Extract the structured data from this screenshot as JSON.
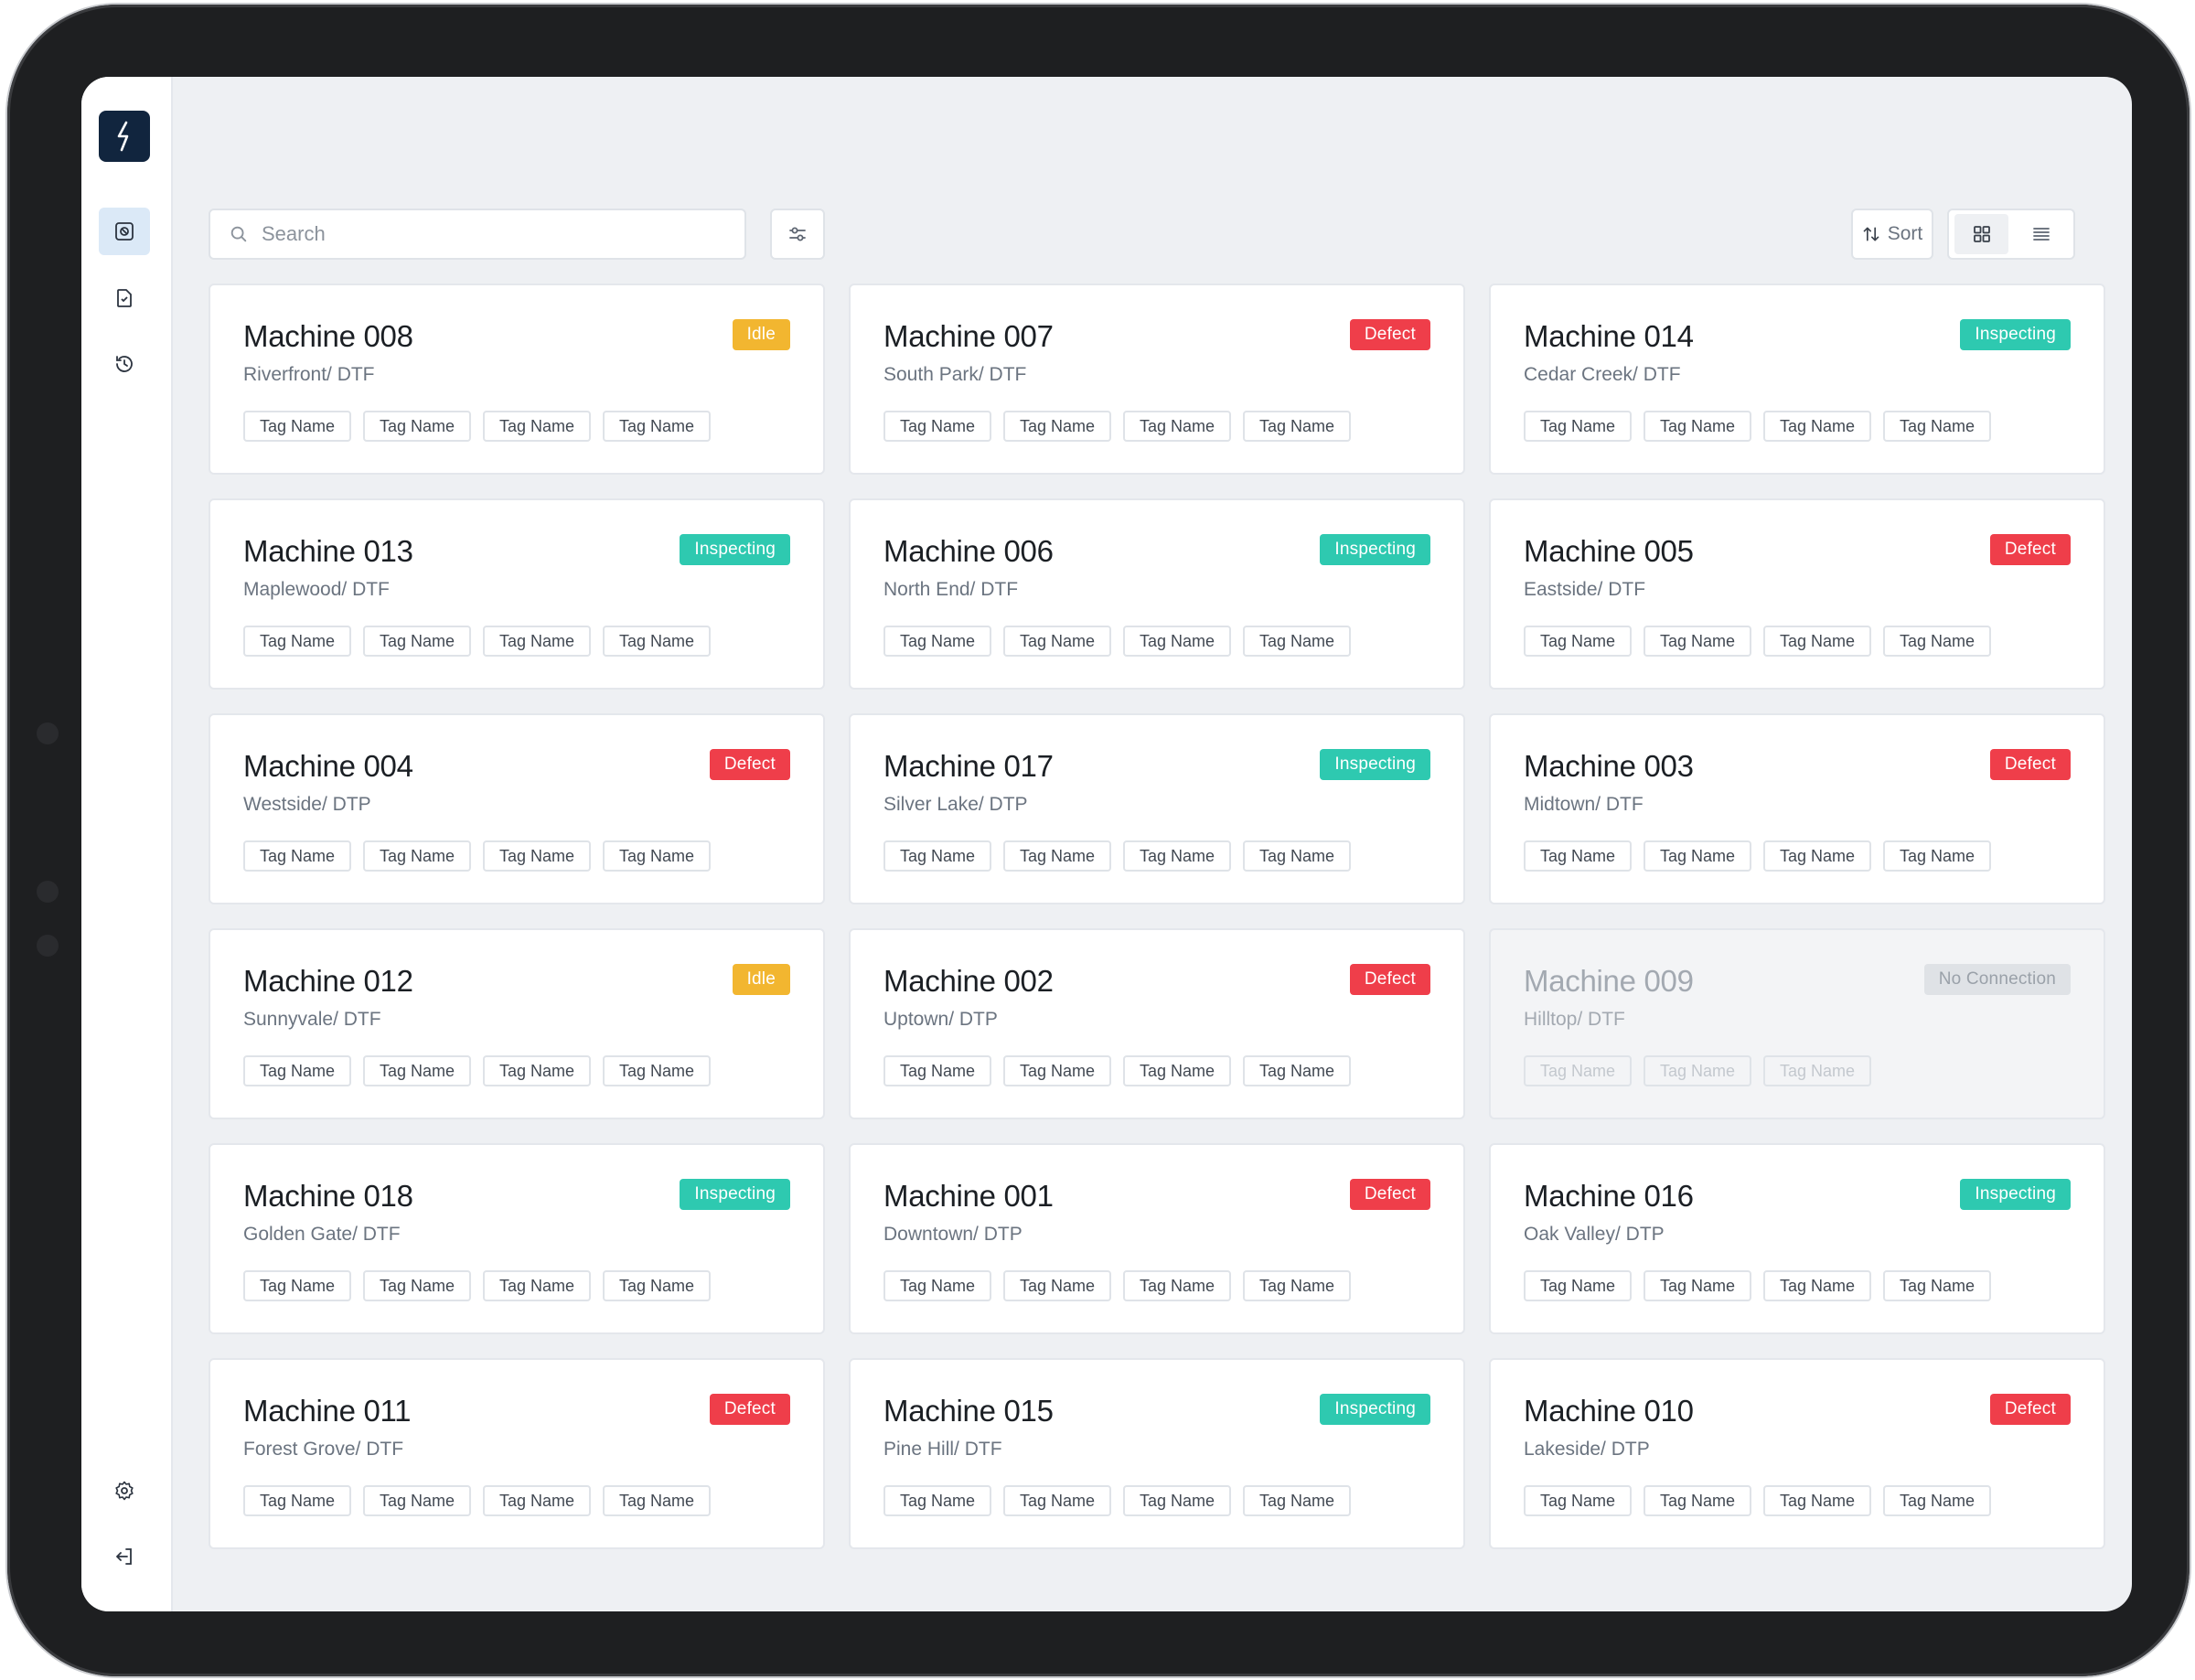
{
  "search": {
    "placeholder": "Search"
  },
  "toolbar": {
    "sort_label": "Sort"
  },
  "colors": {
    "Idle": "#f2b630",
    "Defect": "#ef3e4a",
    "Inspecting": "#2ec9b0",
    "No Connection": "#dfe2e6"
  },
  "icons": {
    "logo": "lightning-icon",
    "nav": [
      "scan-icon",
      "document-icon",
      "history-icon"
    ],
    "footer": [
      "settings-icon",
      "logout-icon"
    ]
  },
  "machines": [
    {
      "name": "Machine 008",
      "location": "Riverfront/ DTF",
      "status": "Idle",
      "tags": [
        "Tag Name",
        "Tag Name",
        "Tag Name",
        "Tag Name"
      ]
    },
    {
      "name": "Machine 007",
      "location": "South Park/ DTF",
      "status": "Defect",
      "tags": [
        "Tag Name",
        "Tag Name",
        "Tag Name",
        "Tag Name"
      ]
    },
    {
      "name": "Machine 014",
      "location": "Cedar Creek/ DTF",
      "status": "Inspecting",
      "tags": [
        "Tag Name",
        "Tag Name",
        "Tag Name",
        "Tag Name"
      ]
    },
    {
      "name": "Machine 013",
      "location": "Maplewood/ DTF",
      "status": "Inspecting",
      "tags": [
        "Tag Name",
        "Tag Name",
        "Tag Name",
        "Tag Name"
      ]
    },
    {
      "name": "Machine 006",
      "location": "North End/ DTF",
      "status": "Inspecting",
      "tags": [
        "Tag Name",
        "Tag Name",
        "Tag Name",
        "Tag Name"
      ]
    },
    {
      "name": "Machine 005",
      "location": "Eastside/ DTF",
      "status": "Defect",
      "tags": [
        "Tag Name",
        "Tag Name",
        "Tag Name",
        "Tag Name"
      ]
    },
    {
      "name": "Machine 004",
      "location": "Westside/ DTP",
      "status": "Defect",
      "tags": [
        "Tag Name",
        "Tag Name",
        "Tag Name",
        "Tag Name"
      ]
    },
    {
      "name": "Machine 017",
      "location": "Silver Lake/ DTP",
      "status": "Inspecting",
      "tags": [
        "Tag Name",
        "Tag Name",
        "Tag Name",
        "Tag Name"
      ]
    },
    {
      "name": "Machine 003",
      "location": "Midtown/ DTF",
      "status": "Defect",
      "tags": [
        "Tag Name",
        "Tag Name",
        "Tag Name",
        "Tag Name"
      ]
    },
    {
      "name": "Machine 012",
      "location": "Sunnyvale/ DTF",
      "status": "Idle",
      "tags": [
        "Tag Name",
        "Tag Name",
        "Tag Name",
        "Tag Name"
      ]
    },
    {
      "name": "Machine 002",
      "location": "Uptown/ DTP",
      "status": "Defect",
      "tags": [
        "Tag Name",
        "Tag Name",
        "Tag Name",
        "Tag Name"
      ]
    },
    {
      "name": "Machine 009",
      "location": "Hilltop/ DTF",
      "status": "No Connection",
      "tags": [
        "Tag Name",
        "Tag Name",
        "Tag Name"
      ]
    },
    {
      "name": "Machine 018",
      "location": "Golden Gate/ DTF",
      "status": "Inspecting",
      "tags": [
        "Tag Name",
        "Tag Name",
        "Tag Name",
        "Tag Name"
      ]
    },
    {
      "name": "Machine 001",
      "location": "Downtown/ DTP",
      "status": "Defect",
      "tags": [
        "Tag Name",
        "Tag Name",
        "Tag Name",
        "Tag Name"
      ]
    },
    {
      "name": "Machine 016",
      "location": "Oak Valley/ DTP",
      "status": "Inspecting",
      "tags": [
        "Tag Name",
        "Tag Name",
        "Tag Name",
        "Tag Name"
      ]
    },
    {
      "name": "Machine 011",
      "location": "Forest Grove/ DTF",
      "status": "Defect",
      "tags": [
        "Tag Name",
        "Tag Name",
        "Tag Name",
        "Tag Name"
      ]
    },
    {
      "name": "Machine 015",
      "location": "Pine Hill/ DTF",
      "status": "Inspecting",
      "tags": [
        "Tag Name",
        "Tag Name",
        "Tag Name",
        "Tag Name"
      ]
    },
    {
      "name": "Machine 010",
      "location": "Lakeside/ DTP",
      "status": "Defect",
      "tags": [
        "Tag Name",
        "Tag Name",
        "Tag Name",
        "Tag Name"
      ]
    }
  ]
}
